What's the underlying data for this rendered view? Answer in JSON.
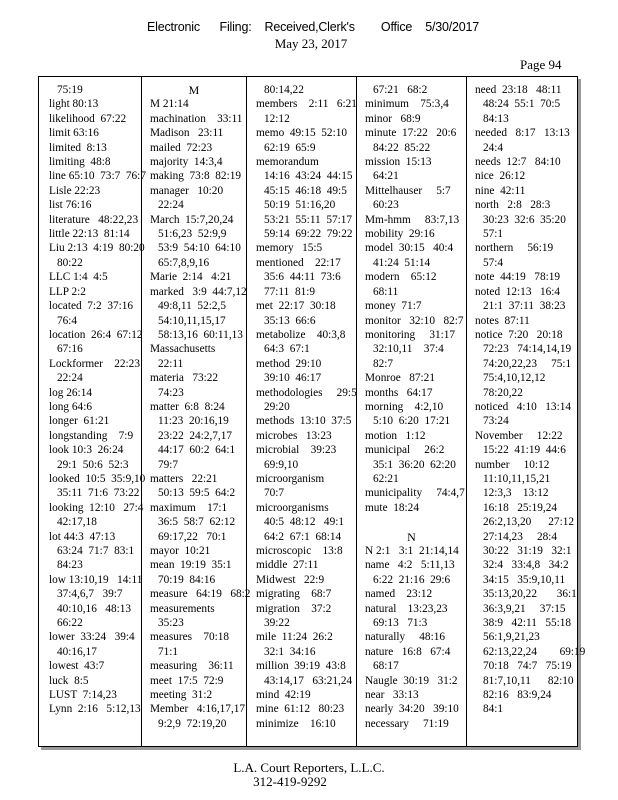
{
  "header": {
    "filing_stamp": "Electronic      Filing:    Received,Clerk's        Office    5/30/2017",
    "date": "May 23, 2017",
    "page": "Page 94"
  },
  "footer": {
    "company": "L.A. Court Reporters, L.L.C.",
    "phone": "312-419-9292"
  },
  "columns": [
    [
      {
        "c": [
          "75:19"
        ]
      },
      {
        "t": "light 80:13"
      },
      {
        "t": "likelihood  67:22"
      },
      {
        "t": "limit 63:16"
      },
      {
        "t": "limited  8:13"
      },
      {
        "t": "limiting  48:8"
      },
      {
        "t": "line 65:10  73:7  76:7"
      },
      {
        "t": "Lisle 22:23"
      },
      {
        "t": "list 76:16"
      },
      {
        "t": "literature   48:22,23"
      },
      {
        "t": "little 22:13  81:14"
      },
      {
        "t": "Liu 2:13  4:19  80:20",
        "c": [
          "80:22"
        ]
      },
      {
        "t": "LLC 1:4  4:5"
      },
      {
        "t": "LLP 2:2"
      },
      {
        "t": "located  7:2  37:16",
        "c": [
          "76:4"
        ]
      },
      {
        "t": "location  26:4  67:12",
        "c": [
          "67:16"
        ]
      },
      {
        "t": "Lockformer    22:23",
        "c": [
          "22:24"
        ]
      },
      {
        "t": "log 26:14"
      },
      {
        "t": "long 64:6"
      },
      {
        "t": "longer  61:21"
      },
      {
        "t": "longstanding    7:9"
      },
      {
        "t": "look 10:3  26:24",
        "c": [
          "29:1  50:6  52:3"
        ]
      },
      {
        "t": "looked  10:5  35:9,10",
        "c": [
          "35:11  71:6  73:22"
        ]
      },
      {
        "t": "looking  12:10   27:4",
        "c": [
          "42:17,18"
        ]
      },
      {
        "t": "lot 44:3  47:13",
        "c": [
          "63:24  71:7  83:1",
          "84:23"
        ]
      },
      {
        "t": "low 13:10,19   14:11",
        "c": [
          "37:4,6,7   39:7",
          "40:10,16   48:13",
          "66:22"
        ]
      },
      {
        "t": "lower  33:24   39:4",
        "c": [
          "40:16,17"
        ]
      },
      {
        "t": "lowest  43:7"
      },
      {
        "t": "luck  8:5"
      },
      {
        "t": "LUST  7:14,23"
      },
      {
        "t": "Lynn  2:16   5:12,13"
      }
    ],
    [
      {
        "h": "M"
      },
      {
        "t": "M 21:14"
      },
      {
        "t": "machination    33:11"
      },
      {
        "t": "Madison   23:11"
      },
      {
        "t": "mailed  72:23"
      },
      {
        "t": "majority  14:3,4"
      },
      {
        "t": "making  73:8  82:19"
      },
      {
        "t": "manager   10:20",
        "c": [
          "22:24"
        ]
      },
      {
        "t": "March  15:7,20,24",
        "c": [
          "51:6,23  52:9,9",
          "53:9  54:10  64:10",
          "65:7,8,9,16"
        ]
      },
      {
        "t": "Marie  2:14   4:21"
      },
      {
        "t": "marked   3:9  44:7,12",
        "c": [
          "49:8,11  52:2,5",
          "54:10,11,15,17",
          "58:13,16  60:11,13"
        ]
      },
      {
        "t": "Massachusetts",
        "c": [
          "22:11"
        ]
      },
      {
        "t": "materia   73:22",
        "c": [
          "74:23"
        ]
      },
      {
        "t": "matter  6:8  8:24",
        "c": [
          "11:23  20:16,19",
          "23:22  24:2,7,17",
          "44:17  60:2  64:1",
          "79:7"
        ]
      },
      {
        "t": "matters   22:21",
        "c": [
          "50:13  59:5  64:2"
        ]
      },
      {
        "t": "maximum    17:1",
        "c": [
          "36:5  58:7  62:12",
          "69:17,22   70:1"
        ]
      },
      {
        "t": "mayor  10:21"
      },
      {
        "t": "mean  19:19  35:1",
        "c": [
          "70:19  84:16"
        ]
      },
      {
        "t": "measure   64:19   68:2"
      },
      {
        "t": "measurements",
        "c": [
          "35:23"
        ]
      },
      {
        "t": "measures    70:18",
        "c": [
          "71:1"
        ]
      },
      {
        "t": "measuring    36:11"
      },
      {
        "t": "meet  17:5  72:9"
      },
      {
        "t": "meeting  31:2"
      },
      {
        "t": "Member   4:16,17,17",
        "c": [
          "9:2,9  72:19,20"
        ]
      }
    ],
    [
      {
        "c": [
          "80:14,22"
        ]
      },
      {
        "t": "members    2:11   6:21",
        "c": [
          "12:12"
        ]
      },
      {
        "t": "memo  49:15  52:10",
        "c": [
          "62:19  65:9"
        ]
      },
      {
        "t": "memorandum",
        "c": [
          "14:16  43:24  44:15",
          "45:15  46:18  49:5",
          "50:19  51:16,20",
          "53:21  55:11  57:17",
          "59:14  69:22  79:22"
        ]
      },
      {
        "t": "memory   15:5"
      },
      {
        "t": "mentioned    22:17",
        "c": [
          "35:6  44:11  73:6",
          "77:11  81:9"
        ]
      },
      {
        "t": "met  22:17  30:18",
        "c": [
          "35:13  66:6"
        ]
      },
      {
        "t": "metabolize    40:3,8",
        "c": [
          "64:3  67:1"
        ]
      },
      {
        "t": "method  29:10",
        "c": [
          "39:10  46:17"
        ]
      },
      {
        "t": "methodologies     29:5",
        "c": [
          "29:20"
        ]
      },
      {
        "t": "methods  13:10  37:5"
      },
      {
        "t": "microbes   13:23"
      },
      {
        "t": "microbial    39:23",
        "c": [
          "69:9,10"
        ]
      },
      {
        "t": "microorganism",
        "c": [
          "70:7"
        ]
      },
      {
        "t": "microorganisms",
        "c": [
          "40:5  48:12   49:1",
          "64:2  67:1  68:14"
        ]
      },
      {
        "t": "microscopic    13:8"
      },
      {
        "t": "middle  27:11"
      },
      {
        "t": "Midwest   22:9"
      },
      {
        "t": "migrating    68:7"
      },
      {
        "t": "migration    37:2",
        "c": [
          "39:22"
        ]
      },
      {
        "t": "mile  11:24  26:2",
        "c": [
          "32:1  34:16"
        ]
      },
      {
        "t": "million  39:19  43:8",
        "c": [
          "43:14,17   63:21,24"
        ]
      },
      {
        "t": "mind  42:19"
      },
      {
        "t": "mine  61:12   80:23"
      },
      {
        "t": "minimize    16:10"
      }
    ],
    [
      {
        "c": [
          "67:21   68:2"
        ]
      },
      {
        "t": "minimum    75:3,4"
      },
      {
        "t": "minor   68:9"
      },
      {
        "t": "minute  17:22   20:6",
        "c": [
          "84:22  85:22"
        ]
      },
      {
        "t": "mission  15:13",
        "c": [
          "64:21"
        ]
      },
      {
        "t": "Mittelhauser     5:7",
        "c": [
          "60:23"
        ]
      },
      {
        "t": "Mm-hmm     83:7,13"
      },
      {
        "t": "mobility  29:16"
      },
      {
        "t": "model  30:15   40:4",
        "c": [
          "41:24  51:14"
        ]
      },
      {
        "t": "modern    65:12",
        "c": [
          "68:11"
        ]
      },
      {
        "t": "money  71:7"
      },
      {
        "t": "monitor   32:10   82:7"
      },
      {
        "t": "monitoring     31:17",
        "c": [
          "32:10,11    37:4",
          "82:7"
        ]
      },
      {
        "t": "Monroe   87:21"
      },
      {
        "t": "months   64:17"
      },
      {
        "t": "morning    4:2,10",
        "c": [
          "5:10  6:20  17:21"
        ]
      },
      {
        "t": "motion   1:12"
      },
      {
        "t": "municipal     26:2",
        "c": [
          "35:1  36:20  62:20",
          "62:21"
        ]
      },
      {
        "t": "municipality     74:4,7"
      },
      {
        "t": "mute  18:24"
      },
      {
        "b": true
      },
      {
        "h": "N"
      },
      {
        "t": "N 2:1   3:1  21:14,14"
      },
      {
        "t": "name   4:2   5:11,13",
        "c": [
          "6:22  21:16  29:6"
        ]
      },
      {
        "t": "named    23:12"
      },
      {
        "t": "natural    13:23,23",
        "c": [
          "69:13   71:3"
        ]
      },
      {
        "t": "naturally     48:16"
      },
      {
        "t": "nature   16:8   67:4",
        "c": [
          "68:17"
        ]
      },
      {
        "t": "Naugle  30:19   31:2"
      },
      {
        "t": "near   33:13"
      },
      {
        "t": "nearly  34:20   39:10"
      },
      {
        "t": "necessary     71:19"
      }
    ],
    [
      {
        "t": "need  23:18   48:11",
        "c": [
          "48:24  55:1  70:5",
          "84:13"
        ]
      },
      {
        "t": "needed   8:17   13:13",
        "c": [
          "24:4"
        ]
      },
      {
        "t": "needs  12:7   84:10"
      },
      {
        "t": "nice  26:12"
      },
      {
        "t": "nine  42:11"
      },
      {
        "t": "north   2:8   28:3",
        "c": [
          "30:23  32:6  35:20",
          "57:1"
        ]
      },
      {
        "t": "northern     56:19",
        "c": [
          "57:4"
        ]
      },
      {
        "t": "note  44:19   78:19"
      },
      {
        "t": "noted  12:13   16:4",
        "c": [
          "21:1  37:11  38:23"
        ]
      },
      {
        "t": "notes  87:11"
      },
      {
        "t": "notice  7:20   20:18",
        "c": [
          "72:23   74:14,14,19",
          "74:20,22,23     75:1",
          "75:4,10,12,12",
          "78:20,22"
        ]
      },
      {
        "t": "noticed   4:10   13:14",
        "c": [
          "73:24"
        ]
      },
      {
        "t": "November     12:22",
        "c": [
          "15:22  41:19  44:6"
        ]
      },
      {
        "t": "number     10:12",
        "c": [
          "11:10,11,15,21",
          "12:3,3    13:12",
          "16:18   25:19,24",
          "26:2,13,20      27:12",
          "27:14,23     28:4",
          "30:22   31:19   32:1",
          "32:4   33:4,8   34:2",
          "34:15   35:9,10,11",
          "35:13,20,22       36:1",
          "36:3,9,21     37:15",
          "38:9   42:11   55:18",
          "56:1,9,21,23",
          "62:13,22,24        69:19",
          "70:18   74:7   75:19",
          "81:7,10,11      82:10",
          "82:16   83:9,24",
          "84:1"
        ]
      }
    ]
  ]
}
